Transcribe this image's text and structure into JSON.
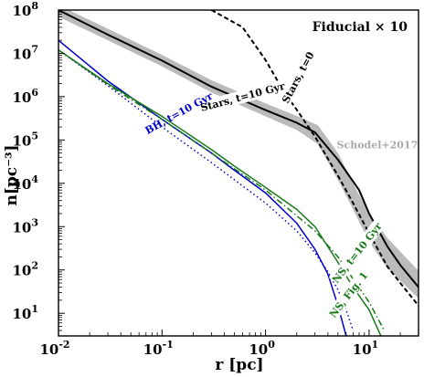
{
  "chart_data": {
    "type": "line",
    "title": "Fiducial × 10",
    "xlabel": "r [pc]",
    "ylabel": "n[pc⁻³]",
    "x_scale": "log",
    "y_scale": "log",
    "xlim": [
      0.01,
      30
    ],
    "ylim": [
      3,
      100000000
    ],
    "grid": false,
    "x_ticks": [
      {
        "value": 0.01,
        "base": "10",
        "exp": "-2"
      },
      {
        "value": 0.1,
        "base": "10",
        "exp": "-1"
      },
      {
        "value": 1,
        "base": "10",
        "exp": "0"
      },
      {
        "value": 10,
        "base": "10",
        "exp": "1"
      }
    ],
    "y_ticks": [
      {
        "value": 10,
        "base": "10",
        "exp": "1"
      },
      {
        "value": 100,
        "base": "10",
        "exp": "2"
      },
      {
        "value": 1000,
        "base": "10",
        "exp": "3"
      },
      {
        "value": 10000,
        "base": "10",
        "exp": "4"
      },
      {
        "value": 100000,
        "base": "10",
        "exp": "5"
      },
      {
        "value": 1000000,
        "base": "10",
        "exp": "6"
      },
      {
        "value": 10000000,
        "base": "10",
        "exp": "7"
      },
      {
        "value": 100000000,
        "base": "10",
        "exp": "8"
      }
    ],
    "band": {
      "label": "Schodel+2017",
      "color": "#bbbbbb",
      "x": [
        0.01,
        0.03,
        0.1,
        0.3,
        1.0,
        2.0,
        3.2,
        5.0,
        7.0,
        10.0,
        15.0,
        30.0
      ],
      "upper": [
        130000000,
        37000000,
        9200000,
        2400000,
        700000,
        360000,
        220000,
        50000,
        10000,
        2000,
        550,
        95
      ],
      "lower": [
        70000000,
        20000000,
        5000000,
        1250000,
        350000,
        170000,
        80000,
        12000,
        2500,
        450,
        110,
        22
      ]
    },
    "series": [
      {
        "name": "Stars, t=10 Gyr",
        "color": "#000000",
        "dash": "solid",
        "x": [
          0.01,
          0.03,
          0.1,
          0.3,
          1.0,
          2.0,
          3.0,
          5.0,
          8.0,
          10.0,
          15.0,
          20.0,
          30.0
        ],
        "y": [
          100000000,
          27000000,
          6800000,
          1700000,
          490000,
          250000,
          150000,
          35000,
          7000,
          2000,
          350,
          130,
          40
        ]
      },
      {
        "name": "Stars, t=0",
        "color": "#000000",
        "dash": "dashed",
        "x": [
          0.3,
          0.6,
          1.0,
          1.5,
          2.0,
          3.0,
          5.0,
          7.0,
          10.0,
          15.0,
          20.0,
          30.0
        ],
        "y": [
          100000000,
          40000000,
          7000000,
          1300000,
          500000,
          120000,
          15000,
          3500,
          700,
          120,
          50,
          15
        ]
      },
      {
        "name": "BH, t=10 Gyr",
        "color": "#0000cc",
        "dash": "solid",
        "x": [
          0.01,
          0.03,
          0.1,
          0.3,
          0.5,
          1.0,
          2.0,
          3.0,
          4.0,
          5.0,
          6.0
        ],
        "y": [
          20000000,
          2300000,
          300000,
          50000,
          20000,
          6000,
          1200,
          300,
          80,
          15,
          3
        ]
      },
      {
        "name": "",
        "color": "#0000cc",
        "dash": "dotted",
        "x": [
          0.01,
          0.03,
          0.1,
          0.3,
          1.0,
          2.0,
          3.0,
          4.0,
          5.0,
          6.0,
          7.0
        ],
        "y": [
          12000000,
          1800000,
          200000,
          30000,
          3500,
          800,
          250,
          90,
          35,
          12,
          4
        ]
      },
      {
        "name": "NS, t=10 Gyr",
        "color": "#1a7a1a",
        "dash": "solid",
        "x": [
          0.01,
          0.03,
          0.1,
          0.3,
          0.5,
          1.0,
          2.0,
          3.0,
          5.0,
          7.0,
          10.0,
          13.0
        ],
        "y": [
          12000000,
          2000000,
          350000,
          60000,
          25000,
          8000,
          2500,
          1000,
          150,
          40,
          12,
          3
        ]
      },
      {
        "name": "NS, Fig. 1",
        "color": "#1a7a1a",
        "dash": "dashdot",
        "x": [
          0.01,
          0.03,
          0.1,
          0.3,
          1.0,
          3.0,
          5.0,
          10.0,
          14.0
        ],
        "y": [
          12000000,
          1900000,
          300000,
          50000,
          7000,
          800,
          200,
          18,
          4
        ]
      }
    ],
    "annotations": [
      {
        "text": "Stars, t=10 Gyr"
      },
      {
        "text": "Stars, t=0"
      },
      {
        "text": "BH, t=10 Gyr"
      },
      {
        "text": "NS, t=10 Gyr"
      },
      {
        "text": "NS, Fig. 1"
      },
      {
        "text": "Schodel+2017"
      }
    ]
  }
}
